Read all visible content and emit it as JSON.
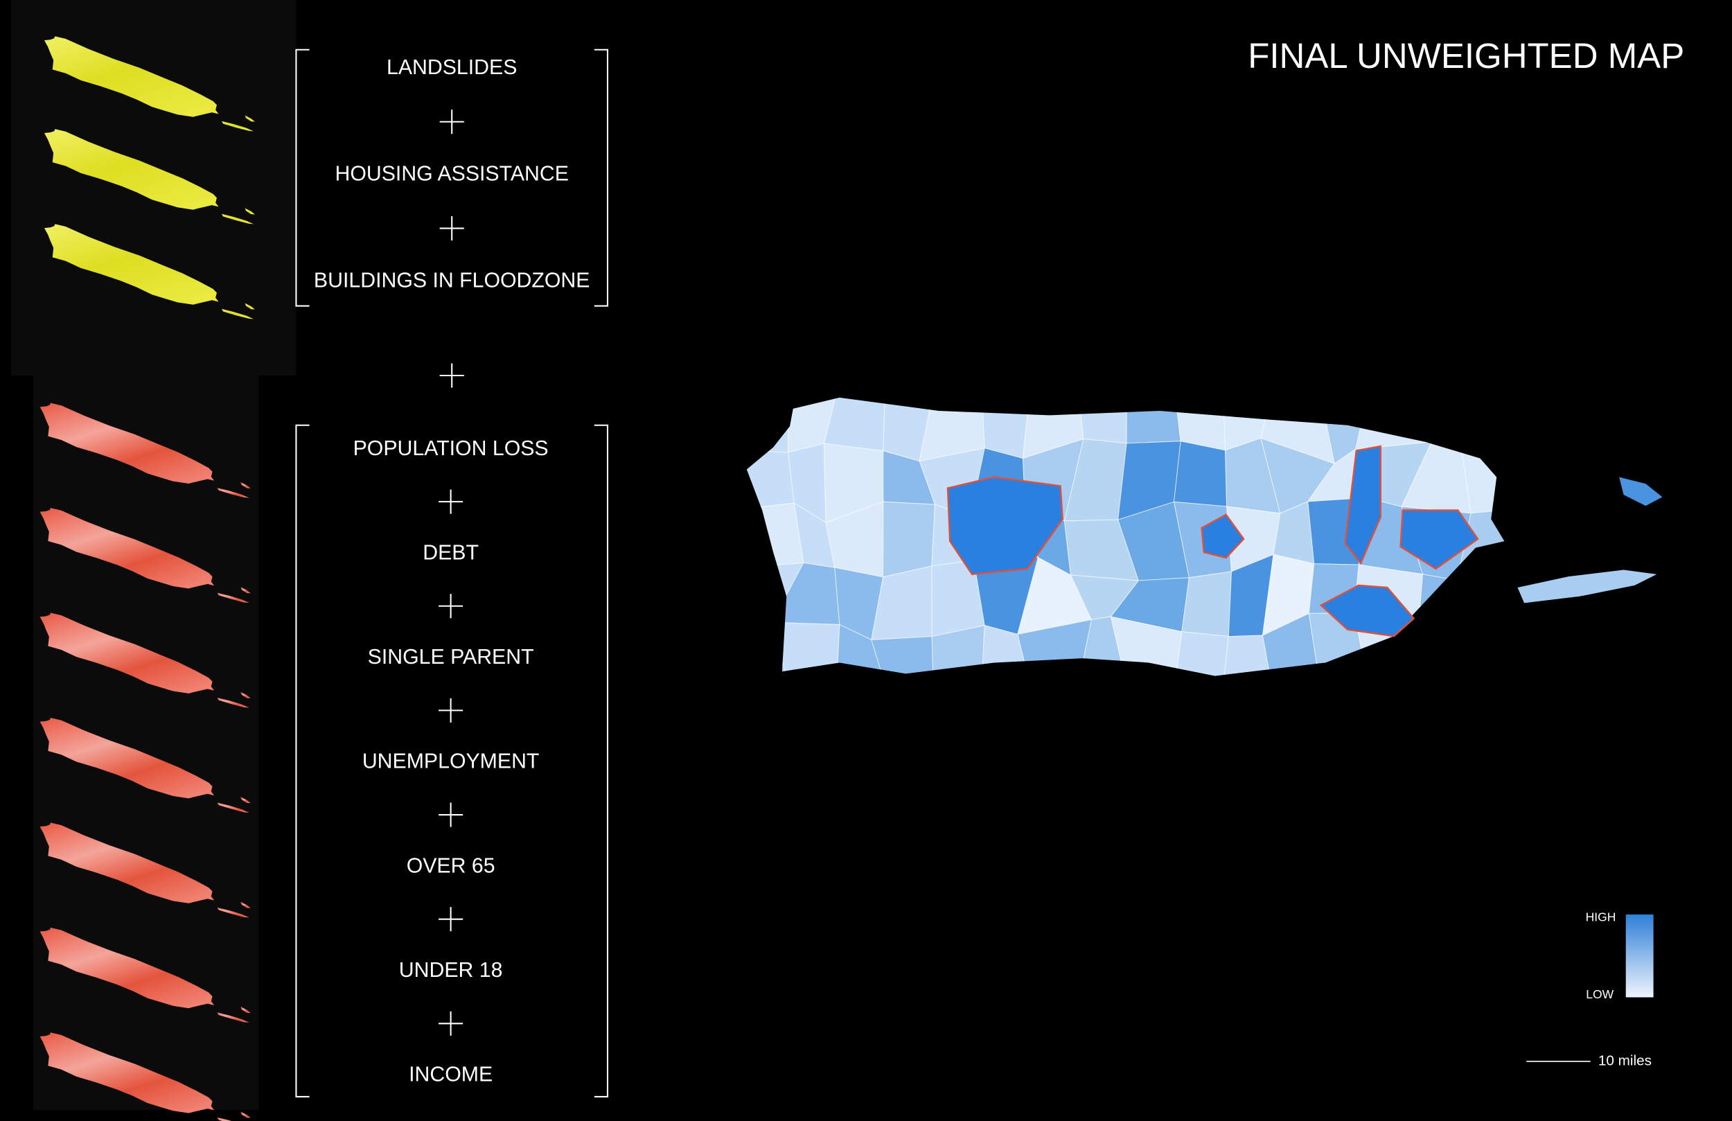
{
  "title": "FINAL UNWEIGHTED MAP",
  "groups": [
    {
      "items": [
        "LANDSLIDES",
        "HOUSING ASSISTANCE",
        "BUILDINGS IN FLOODZONE"
      ]
    },
    {
      "items": [
        "POPULATION LOSS",
        "DEBT",
        "SINGLE PARENT",
        "UNEMPLOYMENT",
        "OVER 65",
        "UNDER 18",
        "INCOME"
      ]
    }
  ],
  "legend": {
    "high": "HIGH",
    "low": "LOW"
  },
  "scale": {
    "label": "10 miles"
  }
}
